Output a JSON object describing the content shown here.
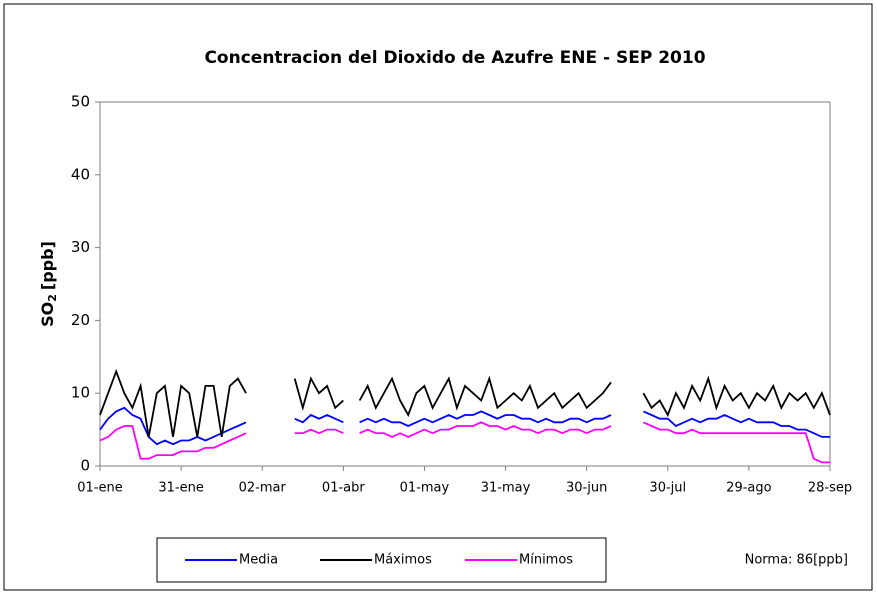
{
  "chart_data": {
    "type": "line",
    "title": "Concentracion del Dioxido de Azufre  ENE - SEP  2010",
    "y_label": {
      "main": "SO",
      "sub": "2",
      "unit": "[ppb]"
    },
    "annotation": "Norma: 86[ppb]",
    "xlim": [
      0,
      270
    ],
    "ylim": [
      0,
      50
    ],
    "yticks": [
      0,
      10,
      20,
      30,
      40,
      50
    ],
    "xticks": [
      {
        "value": 0,
        "label": "01-ene"
      },
      {
        "value": 30,
        "label": "31-ene"
      },
      {
        "value": 60,
        "label": "02-mar"
      },
      {
        "value": 90,
        "label": "01-abr"
      },
      {
        "value": 120,
        "label": "01-may"
      },
      {
        "value": 150,
        "label": "31-may"
      },
      {
        "value": 180,
        "label": "30-jun"
      },
      {
        "value": 210,
        "label": "30-jul"
      },
      {
        "value": 240,
        "label": "29-ago"
      },
      {
        "value": 270,
        "label": "28-sep"
      }
    ],
    "x": [
      0,
      3,
      6,
      9,
      12,
      15,
      18,
      21,
      24,
      27,
      30,
      33,
      36,
      39,
      42,
      45,
      48,
      51,
      54,
      57,
      60,
      63,
      66,
      69,
      72,
      75,
      78,
      81,
      84,
      87,
      90,
      93,
      96,
      99,
      102,
      105,
      108,
      111,
      114,
      117,
      120,
      123,
      126,
      129,
      132,
      135,
      138,
      141,
      144,
      147,
      150,
      153,
      156,
      159,
      162,
      165,
      168,
      171,
      174,
      177,
      180,
      183,
      186,
      189,
      192,
      195,
      198,
      201,
      204,
      207,
      210,
      213,
      216,
      219,
      222,
      225,
      228,
      231,
      234,
      237,
      240,
      243,
      246,
      249,
      252,
      255,
      258,
      261,
      264,
      267,
      270
    ],
    "series": [
      {
        "name": "Media",
        "color": "#0000ff",
        "values": [
          5,
          6.5,
          7.5,
          8,
          7,
          6.5,
          4,
          3,
          3.5,
          3,
          3.5,
          3.5,
          4,
          3.5,
          4,
          4.5,
          5,
          5.5,
          6,
          null,
          null,
          null,
          null,
          null,
          6.5,
          6,
          7,
          6.5,
          7,
          6.5,
          6,
          null,
          6,
          6.5,
          6,
          6.5,
          6,
          6,
          5.5,
          6,
          6.5,
          6,
          6.5,
          7,
          6.5,
          7,
          7,
          7.5,
          7,
          6.5,
          7,
          7,
          6.5,
          6.5,
          6,
          6.5,
          6,
          6,
          6.5,
          6.5,
          6,
          6.5,
          6.5,
          7,
          null,
          null,
          null,
          7.5,
          7,
          6.5,
          6.5,
          5.5,
          6,
          6.5,
          6,
          6.5,
          6.5,
          7,
          6.5,
          6,
          6.5,
          6,
          6,
          6,
          5.5,
          5.5,
          5,
          5,
          4.5,
          4,
          4
        ]
      },
      {
        "name": "Máximos",
        "color": "#000000",
        "values": [
          7,
          10,
          13,
          10,
          8,
          11,
          4,
          10,
          11,
          4,
          11,
          10,
          4,
          11,
          11,
          4,
          11,
          12,
          10,
          null,
          null,
          null,
          null,
          null,
          12,
          8,
          12,
          10,
          11,
          8,
          9,
          null,
          9,
          11,
          8,
          10,
          12,
          9,
          7,
          10,
          11,
          8,
          10,
          12,
          8,
          11,
          10,
          9,
          12,
          8,
          9,
          10,
          9,
          11,
          8,
          9,
          10,
          8,
          9,
          10,
          8,
          9,
          10,
          11.5,
          null,
          null,
          null,
          10,
          8,
          9,
          7,
          10,
          8,
          11,
          9,
          12,
          8,
          11,
          9,
          10,
          8,
          10,
          9,
          11,
          8,
          10,
          9,
          10,
          8,
          10,
          7
        ]
      },
      {
        "name": "Mínimos",
        "color": "#ff00ff",
        "values": [
          3.5,
          4,
          5,
          5.5,
          5.5,
          1,
          1,
          1.5,
          1.5,
          1.5,
          2,
          2,
          2,
          2.5,
          2.5,
          3,
          3.5,
          4,
          4.5,
          null,
          null,
          null,
          null,
          null,
          4.5,
          4.5,
          5,
          4.5,
          5,
          5,
          4.5,
          null,
          4.5,
          5,
          4.5,
          4.5,
          4,
          4.5,
          4,
          4.5,
          5,
          4.5,
          5,
          5,
          5.5,
          5.5,
          5.5,
          6,
          5.5,
          5.5,
          5,
          5.5,
          5,
          5,
          4.5,
          5,
          5,
          4.5,
          5,
          5,
          4.5,
          5,
          5,
          5.5,
          null,
          null,
          null,
          6,
          5.5,
          5,
          5,
          4.5,
          4.5,
          5,
          4.5,
          4.5,
          4.5,
          4.5,
          4.5,
          4.5,
          4.5,
          4.5,
          4.5,
          4.5,
          4.5,
          4.5,
          4.5,
          4.5,
          1,
          0.5,
          0.5
        ]
      }
    ]
  }
}
